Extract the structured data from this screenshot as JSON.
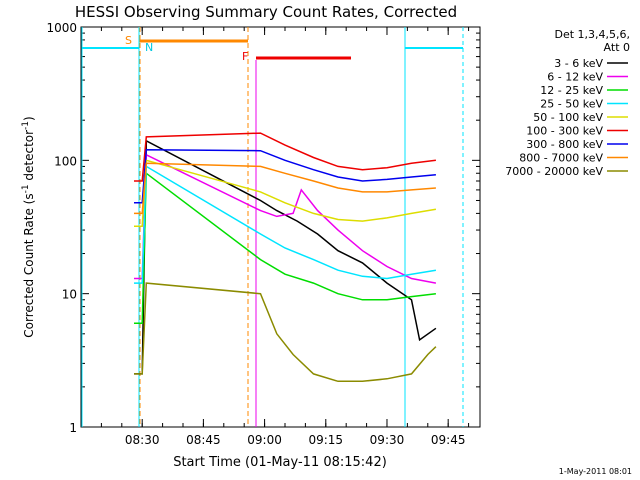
{
  "chart_data": {
    "type": "line",
    "title": "HESSI Observing Summary Count Rates, Corrected",
    "xlabel": "Start Time (01-May-11 08:15:42)",
    "ylabel_main": "Corrected Count Rate (s",
    "ylabel_sup1": "-1",
    "ylabel_mid": " detector",
    "ylabel_sup2": "-1",
    "ylabel_end": ")",
    "yscale": "log",
    "ylim": [
      1,
      1000
    ],
    "xlim_minutes": [
      8.25,
      9.88
    ],
    "x_ticks": [
      "08:30",
      "08:45",
      "09:00",
      "09:15",
      "09:30",
      "09:45"
    ],
    "y_ticks": [
      "1",
      "10",
      "100",
      "1000"
    ],
    "legend_header": [
      "Det 1,3,4,5,6,",
      "Att 0"
    ],
    "legend_position": "right",
    "series": [
      {
        "name": "3 - 6 keV",
        "color": "#000000",
        "x": [
          "08:28",
          "08:30",
          "08:31",
          "08:59",
          "09:03",
          "09:08",
          "09:13",
          "09:18",
          "09:24",
          "09:30",
          "09:36",
          "09:38",
          "09:42"
        ],
        "y": [
          2.5,
          2.5,
          140,
          50,
          42,
          35,
          28,
          21,
          17,
          12,
          9,
          4.5,
          5.5
        ]
      },
      {
        "name": "6 - 12 keV",
        "color": "#ee00ee",
        "x": [
          "08:28",
          "08:30",
          "08:31",
          "08:59",
          "09:03",
          "09:07",
          "09:09",
          "09:13",
          "09:18",
          "09:24",
          "09:30",
          "09:36",
          "09:42"
        ],
        "y": [
          13,
          13,
          110,
          42,
          38,
          40,
          60,
          42,
          30,
          21,
          16,
          13,
          12
        ]
      },
      {
        "name": "12 - 25 keV",
        "color": "#00dd00",
        "x": [
          "08:28",
          "08:30",
          "08:31",
          "08:59",
          "09:05",
          "09:12",
          "09:18",
          "09:24",
          "09:30",
          "09:36",
          "09:42"
        ],
        "y": [
          6,
          6,
          80,
          18,
          14,
          12,
          10,
          9,
          9,
          9.5,
          10
        ]
      },
      {
        "name": "25 - 50 keV",
        "color": "#00e5ff",
        "x": [
          "08:28",
          "08:30",
          "08:31",
          "08:59",
          "09:05",
          "09:12",
          "09:18",
          "09:24",
          "09:30",
          "09:36",
          "09:42"
        ],
        "y": [
          12,
          12,
          90,
          28,
          22,
          18,
          15,
          13.5,
          13,
          14,
          15
        ]
      },
      {
        "name": "50 - 100 keV",
        "color": "#dddd00",
        "x": [
          "08:28",
          "08:30",
          "08:31",
          "08:59",
          "09:05",
          "09:12",
          "09:18",
          "09:24",
          "09:30",
          "09:36",
          "09:42"
        ],
        "y": [
          32,
          32,
          100,
          58,
          48,
          40,
          36,
          35,
          37,
          40,
          43
        ]
      },
      {
        "name": "100 - 300 keV",
        "color": "#ee0000",
        "x": [
          "08:28",
          "08:30",
          "08:31",
          "08:59",
          "09:05",
          "09:12",
          "09:18",
          "09:24",
          "09:30",
          "09:36",
          "09:42"
        ],
        "y": [
          70,
          70,
          150,
          160,
          130,
          105,
          90,
          85,
          88,
          95,
          100
        ]
      },
      {
        "name": "300 - 800 keV",
        "color": "#0000ee",
        "x": [
          "08:28",
          "08:30",
          "08:31",
          "08:59",
          "09:05",
          "09:12",
          "09:18",
          "09:24",
          "09:30",
          "09:36",
          "09:42"
        ],
        "y": [
          48,
          48,
          120,
          118,
          100,
          85,
          75,
          70,
          72,
          75,
          78
        ]
      },
      {
        "name": "800 - 7000 keV",
        "color": "#ff8800",
        "x": [
          "08:28",
          "08:30",
          "08:31",
          "08:59",
          "09:05",
          "09:12",
          "09:18",
          "09:24",
          "09:30",
          "09:36",
          "09:42"
        ],
        "y": [
          40,
          40,
          95,
          90,
          80,
          70,
          62,
          58,
          58,
          60,
          62
        ]
      },
      {
        "name": "7000 - 20000 keV",
        "color": "#8b8b00",
        "x": [
          "08:28",
          "08:30",
          "08:31",
          "08:59",
          "09:03",
          "09:07",
          "09:12",
          "09:18",
          "09:24",
          "09:30",
          "09:36",
          "09:40",
          "09:42"
        ],
        "y": [
          2.5,
          2.5,
          12,
          10,
          5,
          3.5,
          2.5,
          2.2,
          2.2,
          2.3,
          2.5,
          3.5,
          4
        ]
      }
    ],
    "markers": {
      "labels": [
        "S",
        "N",
        "F"
      ],
      "cyan_segment_label": "N",
      "orange_segment_label": "S",
      "red_segment_label": "F"
    },
    "footer_date": "1-May-2011 08:01"
  }
}
